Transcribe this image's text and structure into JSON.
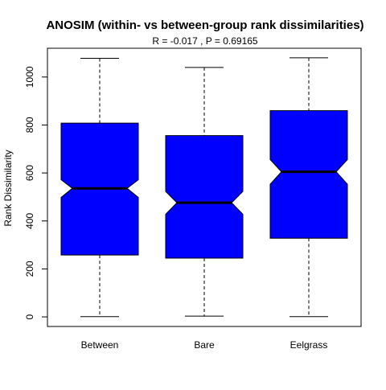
{
  "chart_data": {
    "type": "boxplot",
    "title": "ANOSIM (within- vs between-group rank dissimilarities)",
    "subtitle": "R =  -0.017 ,  P =  0.69165",
    "xlabel": "",
    "ylabel": "Rank Dissimilarity",
    "ylim": [
      -40,
      1120
    ],
    "yticks": [
      0,
      200,
      400,
      600,
      800,
      1000
    ],
    "notched": true,
    "box_color": "#0000ff",
    "categories": [
      "Between",
      "Bare",
      "Eelgrass"
    ],
    "boxes": [
      {
        "min": 1,
        "q1": 258,
        "notch_low": 498,
        "median": 536,
        "notch_high": 572,
        "q3": 808,
        "max": 1078
      },
      {
        "min": 3,
        "q1": 245,
        "notch_low": 428,
        "median": 476,
        "notch_high": 523,
        "q3": 756,
        "max": 1040
      },
      {
        "min": 1,
        "q1": 328,
        "notch_low": 553,
        "median": 605,
        "notch_high": 656,
        "q3": 860,
        "max": 1080
      }
    ],
    "grid": false,
    "legend": "none"
  }
}
